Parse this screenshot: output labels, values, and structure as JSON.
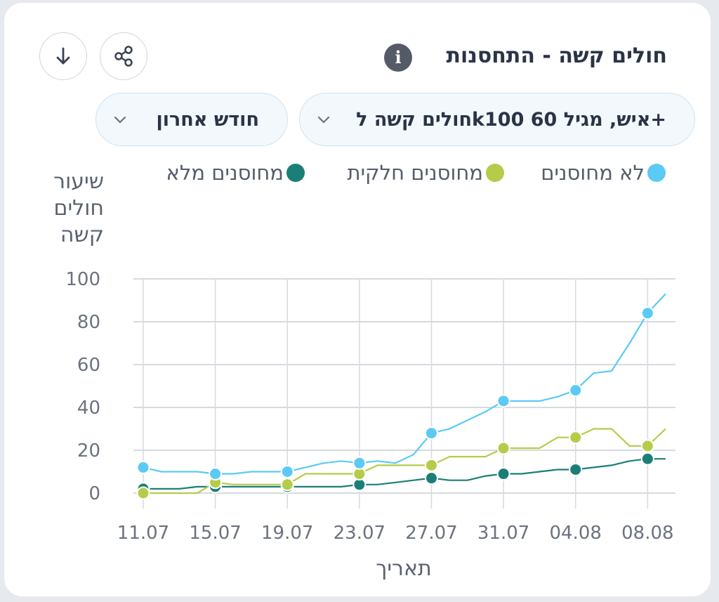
{
  "header": {
    "title": "חולים קשה - התחסנות",
    "info_icon": "info-icon",
    "share_icon": "share-icon",
    "download_icon": "download-arrow-icon"
  },
  "filters": {
    "metric": "חולים קשה לk100 איש, מגיל 60+",
    "period": "חודש אחרון"
  },
  "colors": {
    "not_vaccinated": "#5bcaf5",
    "partially_vaccinated": "#b5cc4a",
    "fully_vaccinated": "#1b7f78",
    "grid": "#c9cdd4"
  },
  "chart_data": {
    "type": "line",
    "ylabel": "שיעור חולים קשה",
    "xlabel": "תאריך",
    "ylim": [
      0,
      100
    ],
    "yticks": [
      0,
      20,
      40,
      60,
      80,
      100
    ],
    "x": [
      "11.07",
      "12.07",
      "13.07",
      "14.07",
      "15.07",
      "16.07",
      "17.07",
      "18.07",
      "19.07",
      "20.07",
      "21.07",
      "22.07",
      "23.07",
      "24.07",
      "25.07",
      "26.07",
      "27.07",
      "28.07",
      "29.07",
      "30.07",
      "31.07",
      "01.08",
      "02.08",
      "03.08",
      "04.08",
      "05.08",
      "06.08",
      "07.08",
      "08.08",
      "09.08"
    ],
    "xticks": [
      "11.07",
      "15.07",
      "19.07",
      "23.07",
      "27.07",
      "31.07",
      "04.08",
      "08.08"
    ],
    "grid": true,
    "legend_position": "top",
    "series": [
      {
        "name": "לא מחוסנים",
        "values": [
          12,
          10,
          10,
          10,
          9,
          9,
          10,
          10,
          10,
          12,
          14,
          15,
          14,
          15,
          14,
          18,
          28,
          30,
          34,
          38,
          43,
          43,
          43,
          45,
          48,
          56,
          57,
          70,
          84,
          93
        ]
      },
      {
        "name": "מחוסנים חלקית",
        "values": [
          0,
          0,
          0,
          0,
          5,
          4,
          4,
          4,
          4,
          9,
          9,
          9,
          9,
          13,
          13,
          13,
          13,
          17,
          17,
          17,
          21,
          21,
          21,
          26,
          26,
          30,
          30,
          22,
          22,
          30
        ]
      },
      {
        "name": "מחוסנים מלא",
        "values": [
          2,
          2,
          2,
          3,
          3,
          3,
          3,
          3,
          3,
          3,
          3,
          3,
          4,
          4,
          5,
          6,
          7,
          6,
          6,
          8,
          9,
          9,
          10,
          11,
          11,
          12,
          13,
          15,
          16,
          16
        ]
      }
    ]
  }
}
